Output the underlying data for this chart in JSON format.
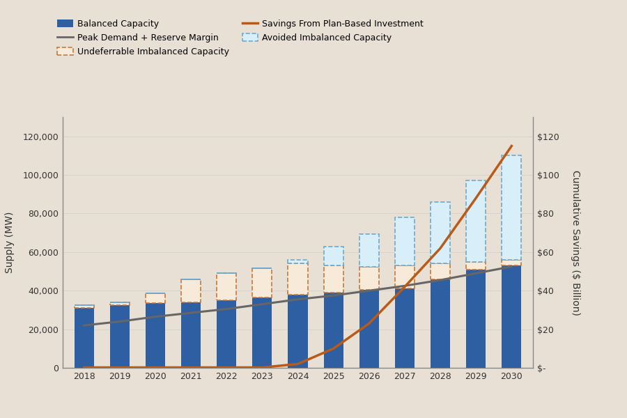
{
  "years": [
    2018,
    2019,
    2020,
    2021,
    2022,
    2023,
    2024,
    2025,
    2026,
    2027,
    2028,
    2029,
    2030
  ],
  "balanced_capacity": [
    31000,
    32500,
    33500,
    34000,
    35000,
    36500,
    38000,
    39000,
    40500,
    41000,
    46000,
    51000,
    53000
  ],
  "undeferrable_capacity": [
    1500,
    1500,
    5000,
    12000,
    14000,
    15000,
    16000,
    14000,
    12000,
    12000,
    8000,
    4000,
    3000
  ],
  "avoided_capacity": [
    0,
    0,
    0,
    0,
    0,
    0,
    2000,
    10000,
    17000,
    25000,
    32000,
    42000,
    54000
  ],
  "peak_demand": [
    22000,
    24000,
    26500,
    28500,
    30500,
    33000,
    35500,
    37500,
    40000,
    42500,
    45500,
    49000,
    52500
  ],
  "savings_billion": [
    0.2,
    0.2,
    0.2,
    0.2,
    0.2,
    0.2,
    2,
    10,
    23,
    42,
    62,
    88,
    115
  ],
  "background_color": "#e8e0d4",
  "blue_bar_color": "#2e5fa3",
  "undeferrable_bar_color": "#f8ead8",
  "undeferrable_edge_color": "#c8783a",
  "avoided_bar_color": "#d8eef8",
  "avoided_edge_color": "#6aaad0",
  "peak_demand_color": "#666666",
  "savings_color": "#b85a18",
  "grid_color": "#d0ccc8",
  "ylabel_left": "Supply (MW)",
  "ylabel_right": "Cumulative Savings ($ Billion)",
  "ylim_left": [
    0,
    130000
  ],
  "ylim_right": [
    0,
    130
  ],
  "yticks_left": [
    0,
    20000,
    40000,
    60000,
    80000,
    100000,
    120000
  ],
  "ytick_labels_left": [
    "0",
    "20,000",
    "40,000",
    "60,000",
    "80,000",
    "100,000",
    "120,000"
  ],
  "yticks_right": [
    0,
    20,
    40,
    60,
    80,
    100,
    120
  ],
  "ytick_labels_right": [
    "$-",
    "$20",
    "$40",
    "$60",
    "$80",
    "$100",
    "$120"
  ],
  "legend_entries": [
    "Balanced Capacity",
    "Undeferrable Imbalanced Capacity",
    "Avoided Imbalanced Capacity",
    "Peak Demand + Reserve Margin",
    "Savings From Plan-Based Investment"
  ],
  "figsize": [
    9.0,
    6.0
  ],
  "dpi": 100
}
